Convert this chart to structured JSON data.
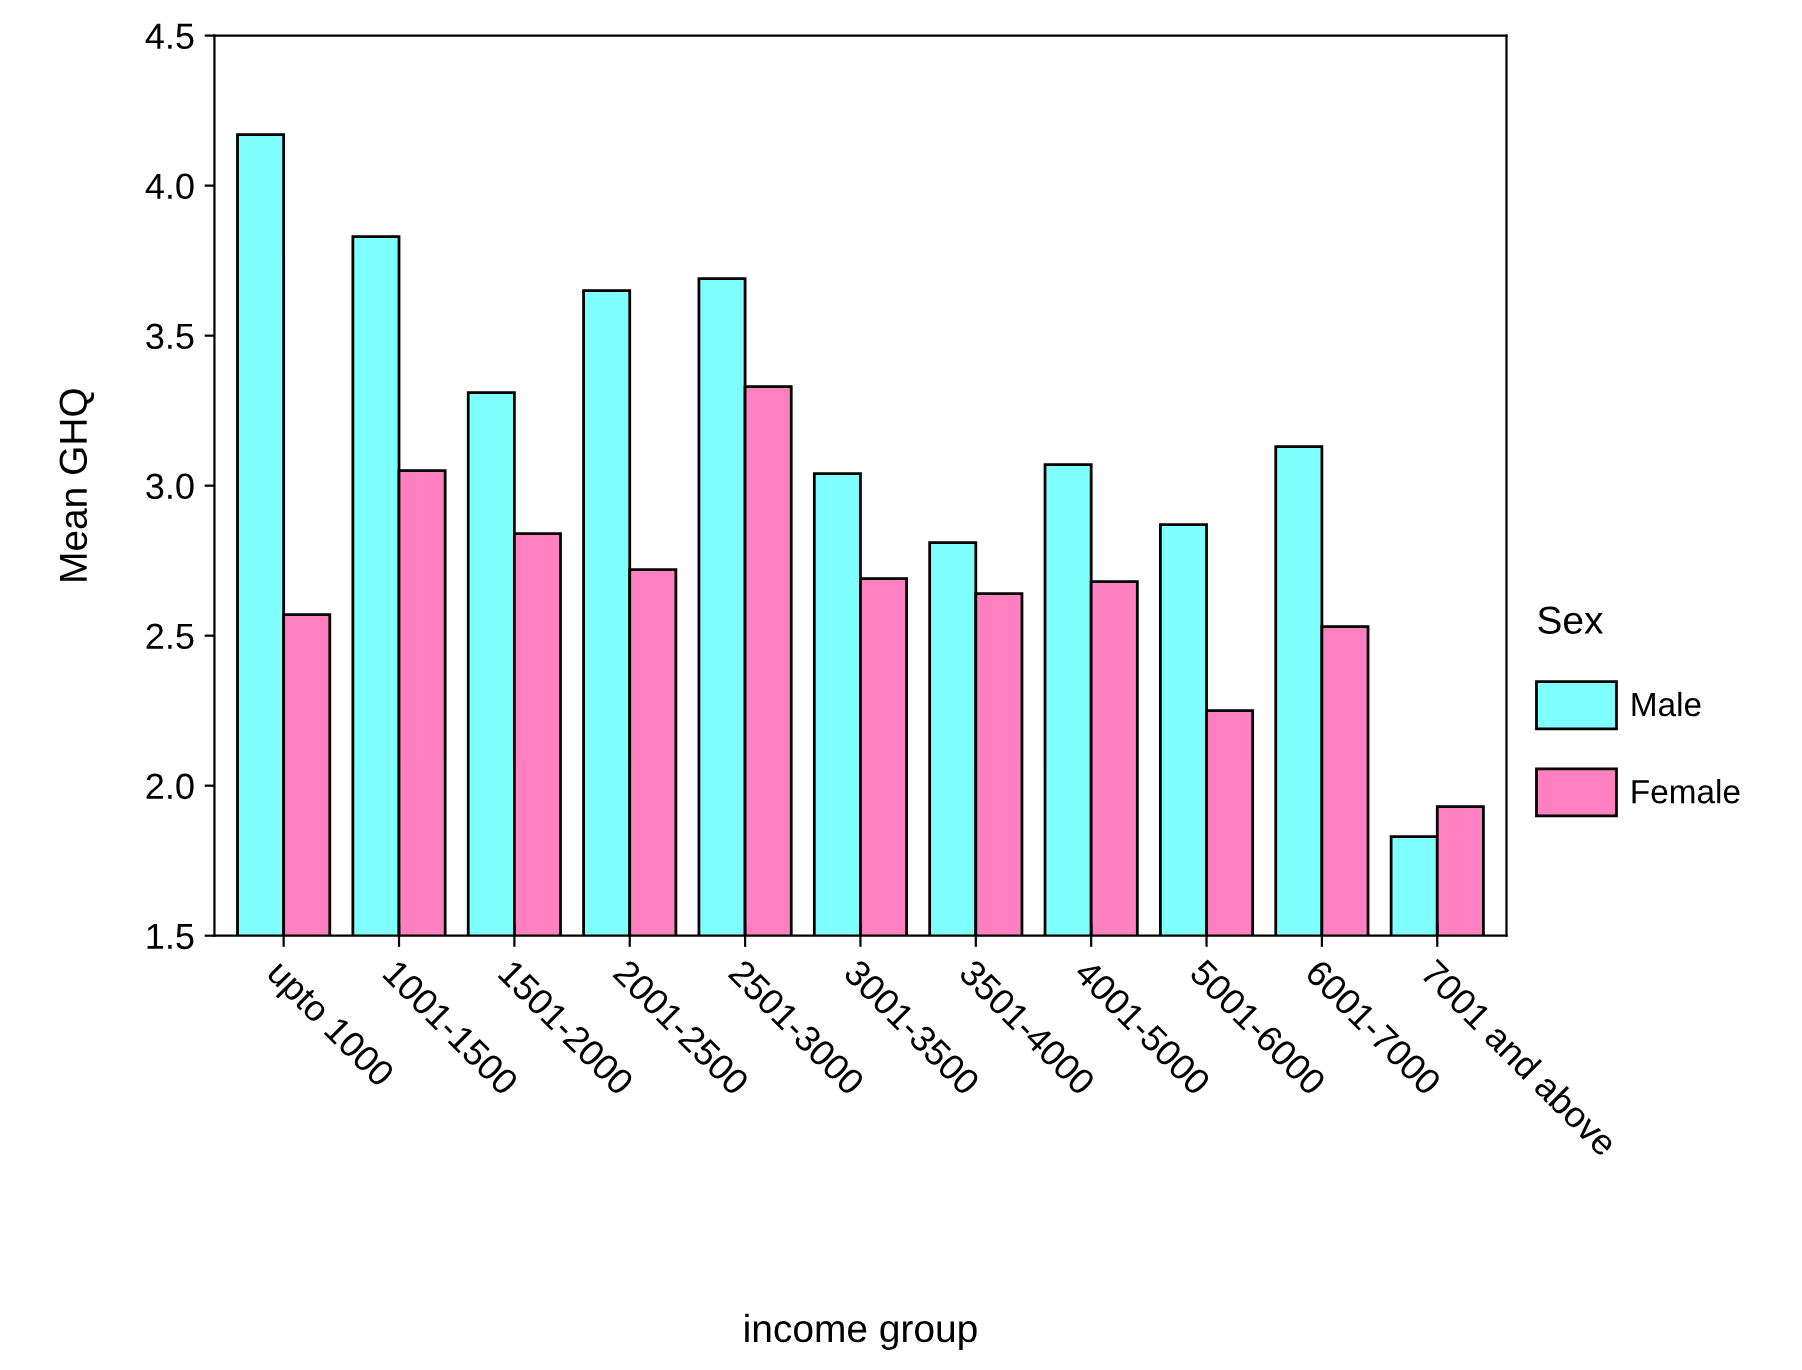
{
  "chart_data": {
    "type": "bar",
    "xlabel": "income group",
    "ylabel": "Mean GHQ",
    "categories": [
      "upto 1000",
      "1001-1500",
      "1501-2000",
      "2001-2500",
      "2501-3000",
      "3001-3500",
      "3501-4000",
      "4001-5000",
      "5001-6000",
      "6001-7000",
      "7001 and above"
    ],
    "series": [
      {
        "name": "Male",
        "color": "#80ffff",
        "values": [
          4.17,
          3.83,
          3.31,
          3.65,
          3.69,
          3.04,
          2.81,
          3.07,
          2.87,
          3.13,
          1.83
        ]
      },
      {
        "name": "Female",
        "color": "#ff80c0",
        "values": [
          2.57,
          3.05,
          2.84,
          2.72,
          3.33,
          2.69,
          2.64,
          2.68,
          2.25,
          2.53,
          1.93
        ]
      }
    ],
    "ylim": [
      1.5,
      4.5
    ],
    "yticks": [
      {
        "value": 1.5,
        "label": "1.5"
      },
      {
        "value": 2.0,
        "label": "2.0"
      },
      {
        "value": 2.5,
        "label": "2.5"
      },
      {
        "value": 3.0,
        "label": "3.0"
      },
      {
        "value": 3.5,
        "label": "3.5"
      },
      {
        "value": 4.0,
        "label": "4.0"
      },
      {
        "value": 4.5,
        "label": "4.5"
      }
    ],
    "legend_title": "Sex",
    "legend": "right",
    "grid": false
  }
}
